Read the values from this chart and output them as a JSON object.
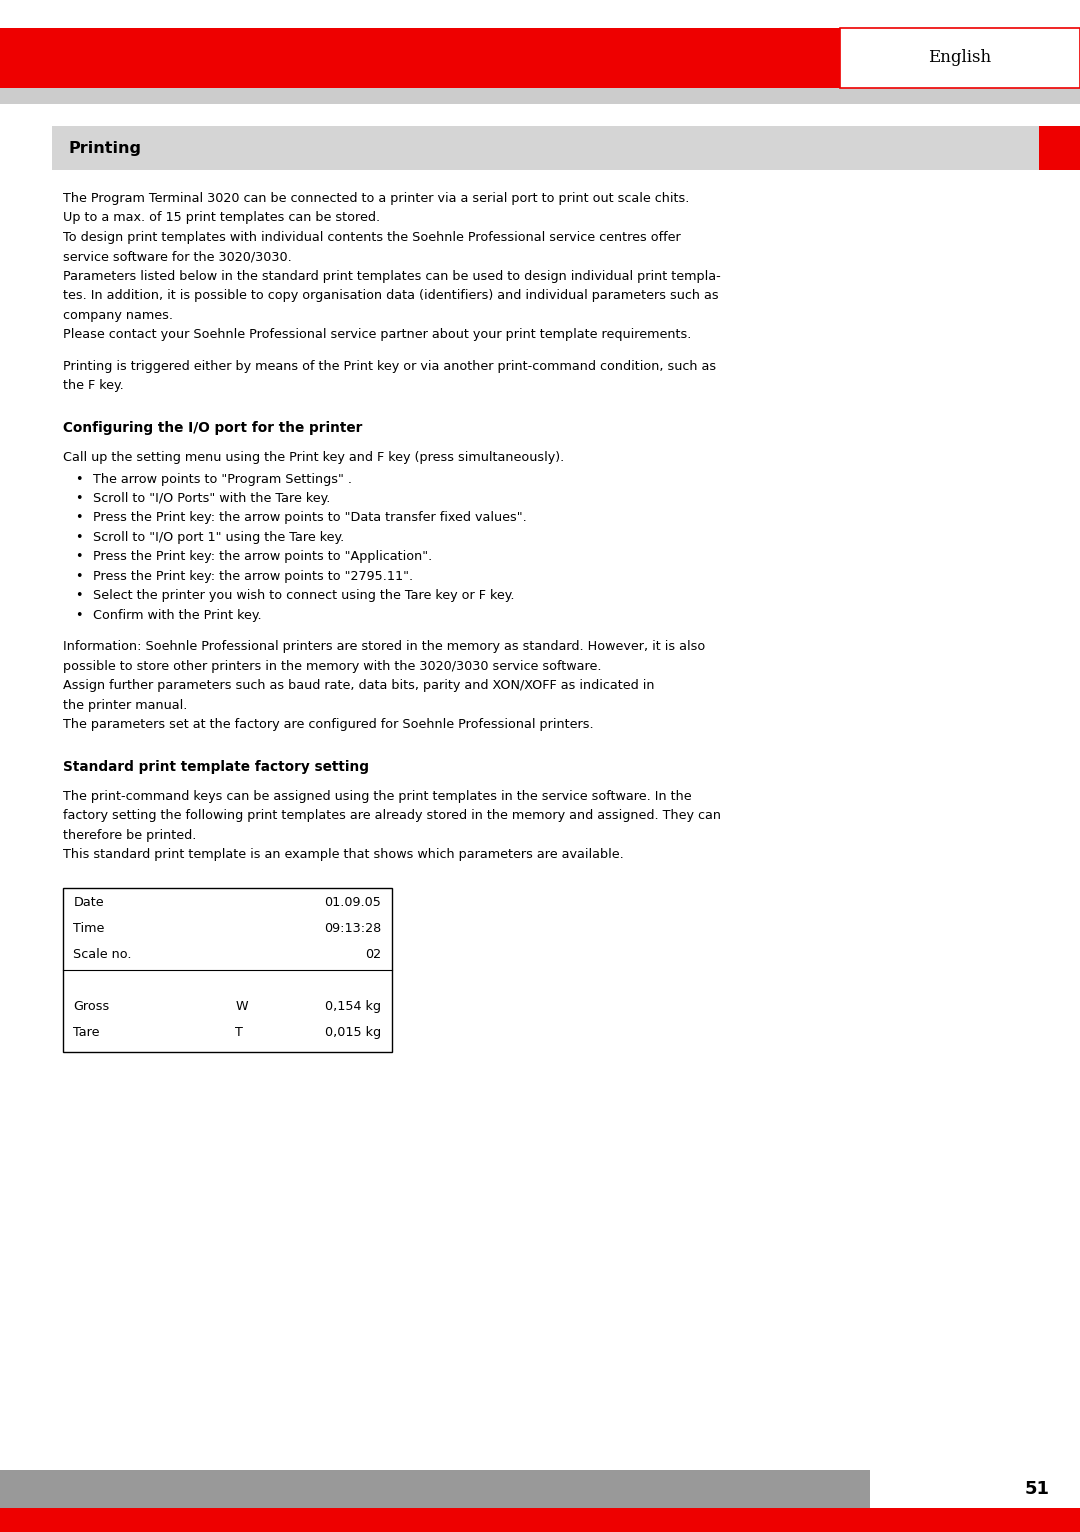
{
  "page_width": 10.8,
  "page_height": 15.32,
  "dpi": 100,
  "bg_color": "#ffffff",
  "red_color": "#ee0000",
  "header_text": "English",
  "section_title": "Printing",
  "section_bg": "#d5d5d5",
  "page_number": "51",
  "body_para1_lines": [
    "The Program Terminal 3020 can be connected to a printer via a serial port to print out scale chits.",
    "Up to a max. of 15 print templates can be stored.",
    "To design print templates with individual contents the Soehnle Professional service centres offer",
    "service software for the 3020/3030.",
    "Parameters listed below in the standard print templates can be used to design individual print templa-",
    "tes. In addition, it is possible to copy organisation data (identifiers) and individual parameters such as",
    "company names.",
    "Please contact your Soehnle Professional service partner about your print template requirements."
  ],
  "body_para2_lines": [
    "Printing is triggered either by means of the Print key or via another print-command condition, such as",
    "the F key."
  ],
  "section2_title": "Configuring the I/O port for the printer",
  "section2_intro": "Call up the setting menu using the Print key and F key (press simultaneously).",
  "bullet_points": [
    "The arrow points to \"Program Settings\" .",
    "Scroll to \"I/O Ports\" with the Tare key.",
    "Press the Print key: the arrow points to \"Data transfer fixed values\".",
    "Scroll to \"I/O port 1\" using the Tare key.",
    "Press the Print key: the arrow points to \"Application\".",
    "Press the Print key: the arrow points to \"2795.11\".",
    "Select the printer you wish to connect using the Tare key or F key.",
    "Confirm with the Print key."
  ],
  "info_lines": [
    "Information: Soehnle Professional printers are stored in the memory as standard. However, it is also",
    "possible to store other printers in the memory with the 3020/3030 service software.",
    "Assign further parameters such as baud rate, data bits, parity and XON/XOFF as indicated in",
    "the printer manual.",
    "The parameters set at the factory are configured for Soehnle Professional printers."
  ],
  "section3_title": "Standard print template factory setting",
  "section3_intro_lines": [
    "The print-command keys can be assigned using the print templates in the service software. In the",
    "factory setting the following print templates are already stored in the memory and assigned. They can",
    "therefore be printed.",
    "This standard print template is an example that shows which parameters are available."
  ],
  "table_rows": [
    [
      "Date",
      "",
      "01.09.05"
    ],
    [
      "Time",
      "",
      "09:13:28"
    ],
    [
      "Scale no.",
      "",
      "02"
    ],
    [
      "",
      "",
      ""
    ],
    [
      "Gross",
      "W",
      "0,154 kg"
    ],
    [
      "Tare",
      "T",
      "0,015 kg"
    ]
  ],
  "body_font_size": 9.2,
  "bold_font_size": 9.8,
  "header_font_size": 12,
  "section_title_font_size": 11.5
}
